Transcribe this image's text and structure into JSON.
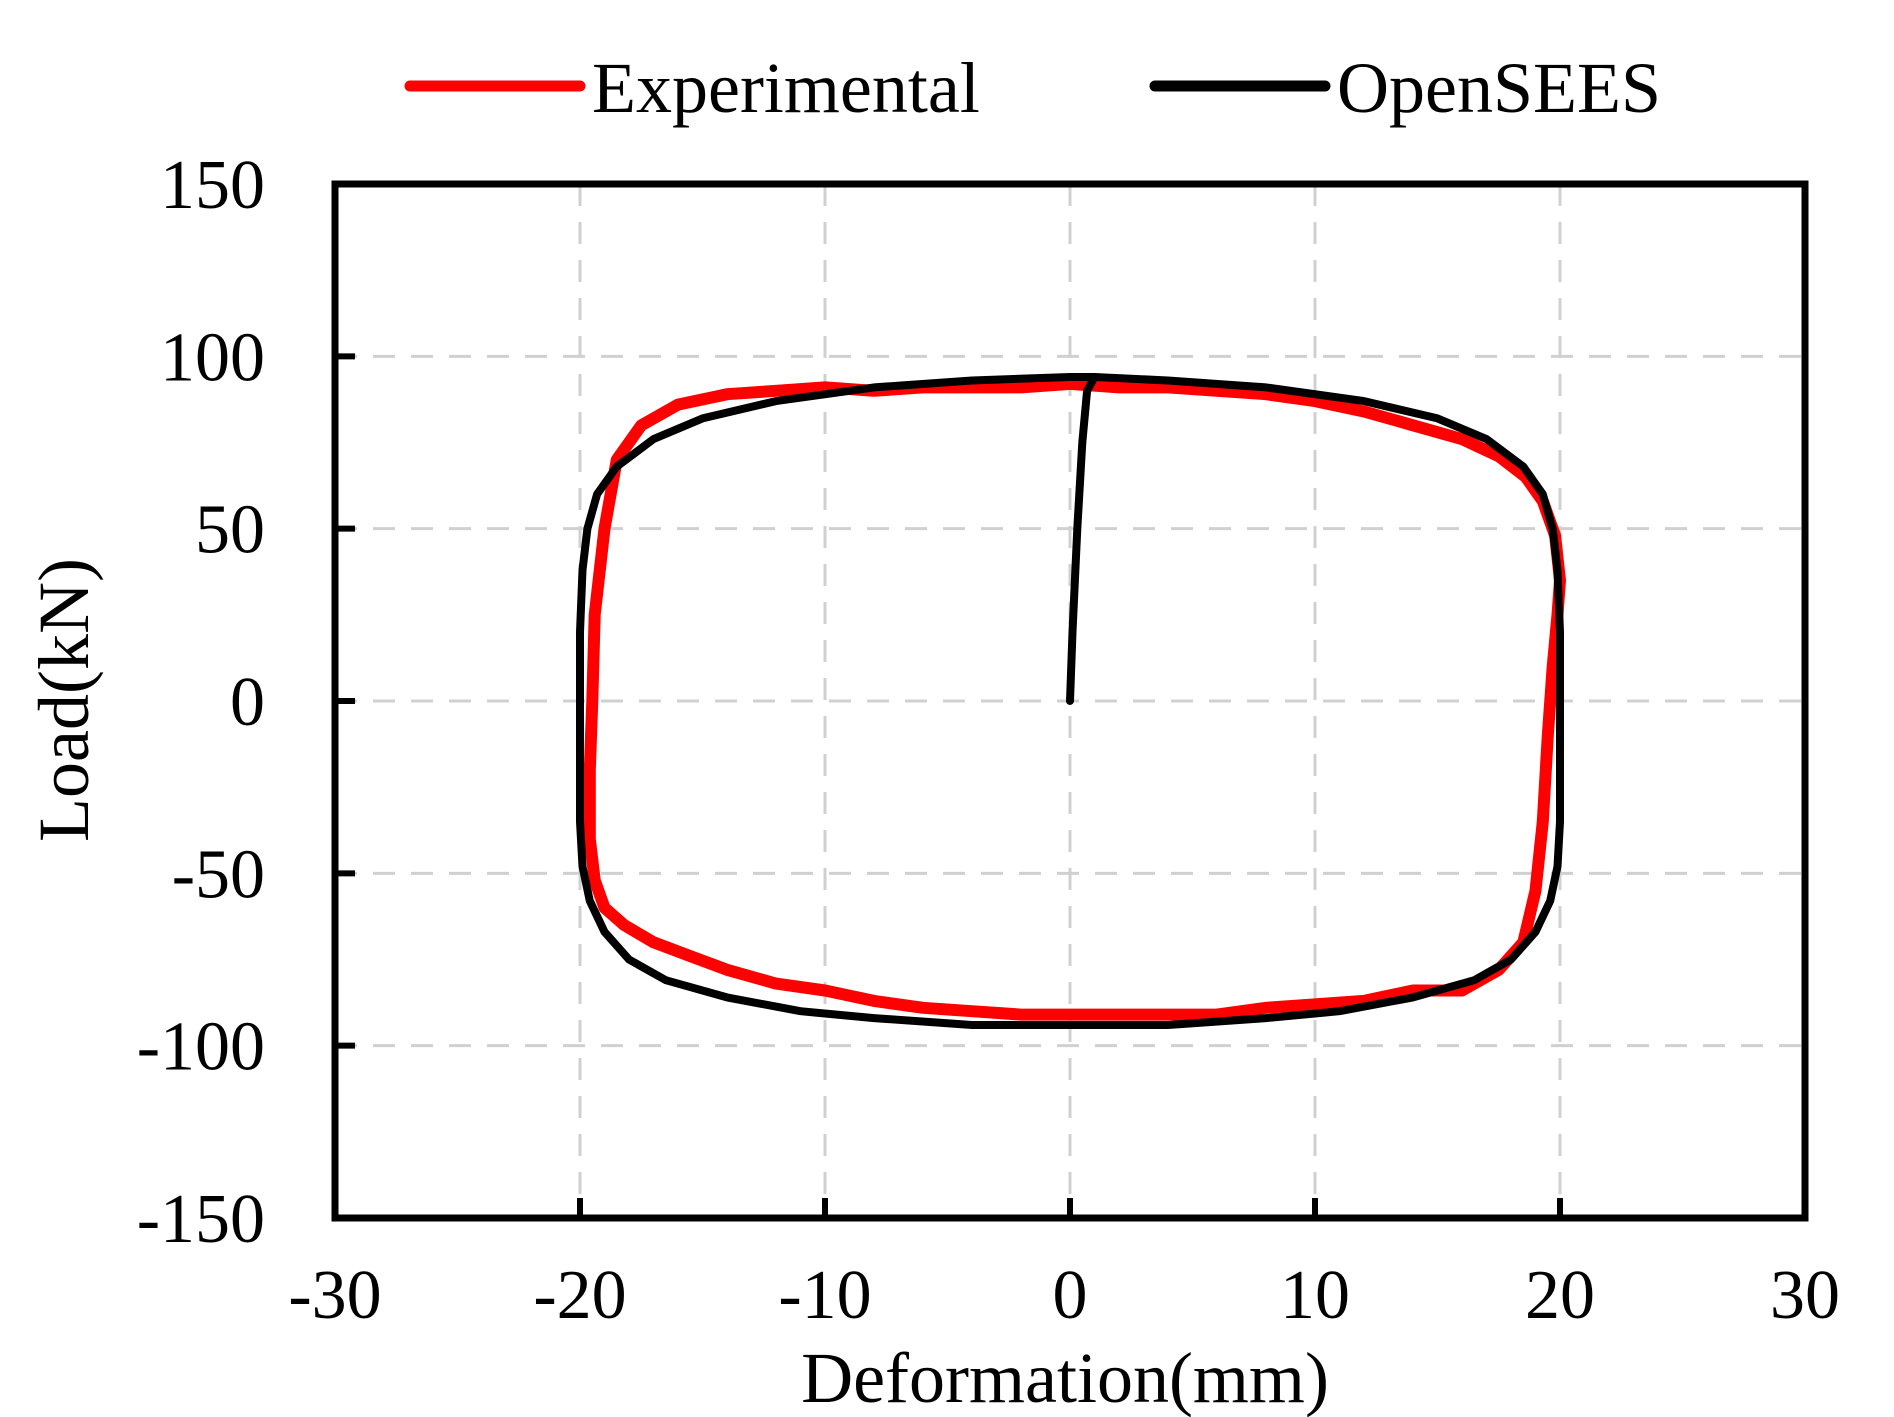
{
  "chart_data": {
    "type": "line",
    "title": "",
    "xlabel": "Deformation(mm)",
    "ylabel": "Load(kN)",
    "xlim": [
      -30,
      30
    ],
    "ylim": [
      -150,
      150
    ],
    "xticks": [
      -30,
      -20,
      -10,
      0,
      10,
      20,
      30
    ],
    "yticks": [
      -150,
      -100,
      -50,
      0,
      50,
      100,
      150
    ],
    "xtick_labels": [
      "-30",
      "-20",
      "-10",
      "0",
      "10",
      "20",
      "30"
    ],
    "ytick_labels": [
      "-150",
      "-100",
      "-50",
      "0",
      "50",
      "100",
      "150"
    ],
    "grid": true,
    "legend_position": "top",
    "series": [
      {
        "name": "Experimental",
        "color": "#ff0000",
        "x": [
          20.0,
          19.8,
          19.3,
          18.6,
          17.5,
          16.0,
          14.0,
          12.0,
          10.0,
          8.0,
          6.0,
          4.0,
          2.0,
          0.0,
          -2.0,
          -4.0,
          -6.0,
          -8.0,
          -10.0,
          -12.0,
          -14.0,
          -16.0,
          -17.5,
          -18.5,
          -19.0,
          -19.4,
          -19.5,
          -19.6,
          -19.6,
          -19.4,
          -19.0,
          -18.2,
          -17.0,
          -15.5,
          -14.0,
          -12.0,
          -10.0,
          -8.0,
          -6.0,
          -4.0,
          -2.0,
          0.0,
          2.0,
          4.0,
          6.0,
          8.0,
          10.0,
          12.0,
          14.0,
          16.0,
          17.5,
          18.5,
          19.0,
          19.3,
          19.5,
          19.7,
          19.9,
          20.0
        ],
        "y": [
          35,
          48,
          58,
          65,
          71,
          76,
          80,
          84,
          87,
          89,
          90,
          91,
          91,
          92,
          91,
          91,
          91,
          90,
          91,
          90,
          89,
          86,
          80,
          70,
          50,
          25,
          0,
          -20,
          -40,
          -52,
          -60,
          -65,
          -70,
          -74,
          -78,
          -82,
          -84,
          -87,
          -89,
          -90,
          -91,
          -91,
          -91,
          -91,
          -91,
          -89,
          -88,
          -87,
          -84,
          -84,
          -78,
          -70,
          -55,
          -35,
          -10,
          10,
          25,
          35
        ]
      },
      {
        "name": "OpenSEES",
        "color": "#000000",
        "x": [
          0.0,
          0.1,
          0.3,
          0.5,
          0.7,
          1.0,
          4.0,
          8.0,
          12.0,
          15.0,
          17.0,
          18.5,
          19.3,
          19.7,
          19.9,
          20.0,
          20.0,
          19.9,
          19.6,
          19.0,
          18.0,
          16.5,
          14.0,
          11.0,
          8.0,
          4.0,
          0.0,
          -4.0,
          -8.0,
          -11.0,
          -14.0,
          -16.5,
          -18.0,
          -19.0,
          -19.6,
          -19.9,
          -20.0,
          -20.0,
          -19.9,
          -19.7,
          -19.3,
          -18.5,
          -17.0,
          -15.0,
          -12.0,
          -8.0,
          -4.0,
          0.0,
          1.0
        ],
        "y": [
          0,
          20,
          50,
          75,
          90,
          94,
          93,
          91,
          87,
          82,
          76,
          68,
          60,
          50,
          38,
          20,
          -35,
          -48,
          -58,
          -67,
          -75,
          -81,
          -86,
          -90,
          -92,
          -94,
          -94,
          -94,
          -92,
          -90,
          -86,
          -81,
          -75,
          -67,
          -58,
          -48,
          -35,
          20,
          38,
          50,
          60,
          68,
          76,
          82,
          87,
          91,
          93,
          94,
          94
        ]
      }
    ]
  }
}
